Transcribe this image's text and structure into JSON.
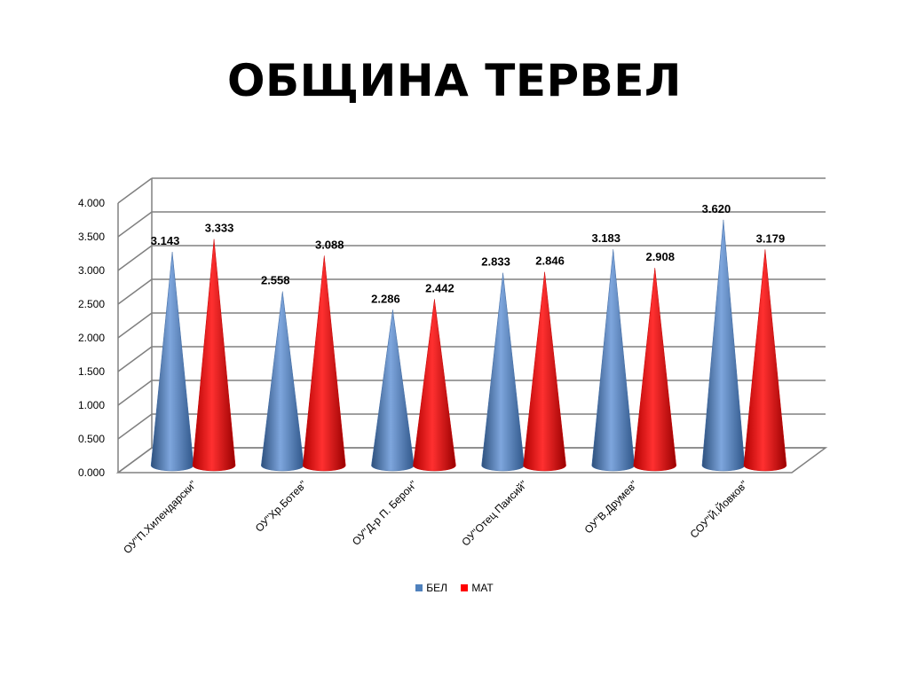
{
  "slide": {
    "title": "ОБЩИНА ТЕРВЕЛ"
  },
  "colors": {
    "series_1": "#4F81BD",
    "series_2": "#FF0000",
    "grid": "#808080"
  },
  "chart_data": {
    "type": "bar",
    "shape": "cone-3d",
    "title": "",
    "xlabel": "",
    "ylabel": "",
    "categories": [
      "ОУ\"П.Хилендарски\"",
      "ОУ\"Хр.Ботев\"",
      "ОУ\"Д-р П. Берон\"",
      "ОУ\"Отец Паисий\"",
      "ОУ\"В.Друмев\"",
      "СОУ\"Й.Йовков\""
    ],
    "series": [
      {
        "name": "БЕЛ",
        "values": [
          3.143,
          2.558,
          2.286,
          2.833,
          3.183,
          3.62
        ],
        "labels": [
          "3.143",
          "2.558",
          "2.286",
          "2.833",
          "3.183",
          "3.620"
        ]
      },
      {
        "name": "МАТ",
        "values": [
          3.333,
          3.088,
          2.442,
          2.846,
          2.908,
          3.179
        ],
        "labels": [
          "3.333",
          "3.088",
          "2.442",
          "2.846",
          "2.908",
          "3.179"
        ]
      }
    ],
    "y_ticks": [
      "0.000",
      "0.500",
      "1.000",
      "1.500",
      "2.000",
      "2.500",
      "3.000",
      "3.500",
      "4.000"
    ],
    "ylim": [
      0,
      4
    ],
    "grid": true,
    "legend_position": "bottom"
  }
}
